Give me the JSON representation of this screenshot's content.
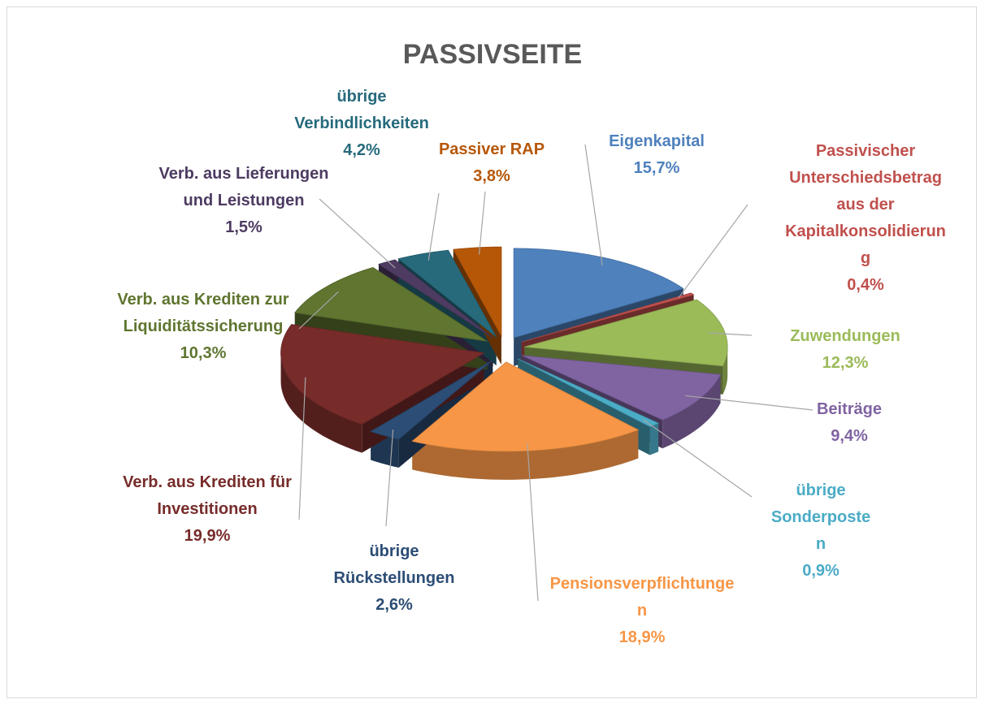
{
  "chart_data": {
    "type": "pie",
    "title": "PASSIVSEITE",
    "categories": [
      "Eigenkapital",
      "Passivischer Unterschiedsbetrag aus der Kapitalkonsolidierung",
      "Zuwendungen",
      "Beiträge",
      "übrige Sonderposten",
      "Pensionsverpflichtungen",
      "übrige Rückstellungen",
      "Verb. aus Krediten für Investitionen",
      "Verb. aus Krediten zur Liquiditätssicherung",
      "Verb. aus Lieferungen und Leistungen",
      "übrige Verbindlichkeiten",
      "Passiver RAP"
    ],
    "values": [
      15.7,
      0.4,
      12.3,
      9.4,
      0.9,
      18.9,
      2.6,
      19.9,
      10.3,
      1.5,
      4.2,
      3.8
    ],
    "value_labels": [
      "15,7%",
      "0,4%",
      "12,3%",
      "9,4%",
      "0,9%",
      "18,9%",
      "2,6%",
      "19,9%",
      "10,3%",
      "1,5%",
      "4,2%",
      "3,8%"
    ],
    "colors": [
      "#4f81bd",
      "#c0504d",
      "#9bbb59",
      "#8064a2",
      "#4bacc6",
      "#f79646",
      "#2c4d75",
      "#772c2a",
      "#5f7530",
      "#4d3b62",
      "#276a7c",
      "#b65708"
    ]
  }
}
